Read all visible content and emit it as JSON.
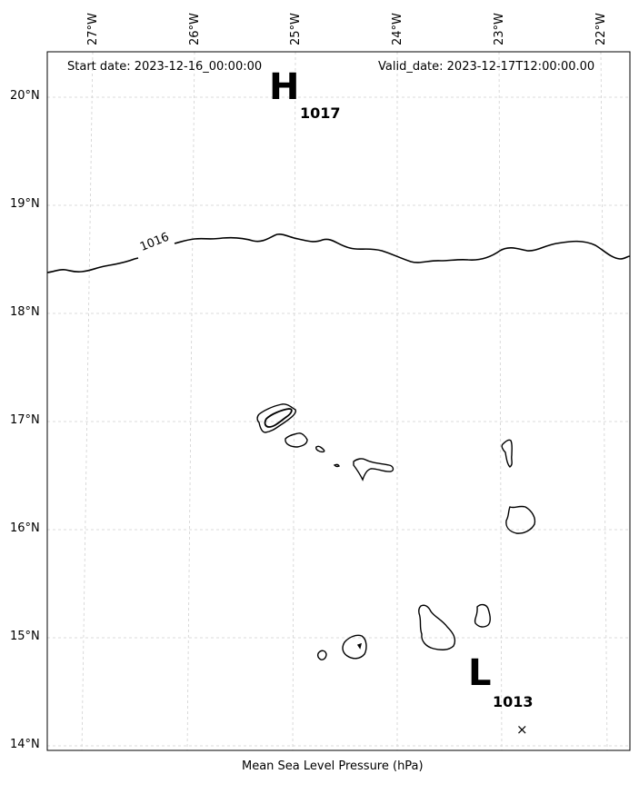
{
  "header": {
    "start_date": "Start date: 2023-12-16_00:00:00",
    "valid_date": "Valid_date: 2023-12-17T12:00:00.00"
  },
  "axes": {
    "lon_labels": [
      "27°W",
      "26°W",
      "25°W",
      "24°W",
      "23°W",
      "22°W"
    ],
    "lat_labels": [
      "20°N",
      "19°N",
      "18°N",
      "17°N",
      "16°N",
      "15°N",
      "14°N"
    ]
  },
  "pressure": {
    "high_symbol": "H",
    "high_value": "1017",
    "low_symbol": "L",
    "low_value": "1013",
    "isobar_label": "1016",
    "low_marker": "×"
  },
  "footer": {
    "xlabel": "Mean Sea Level Pressure (hPa)"
  },
  "colors": {
    "grid": "#cccccc",
    "line": "#000000",
    "frame": "#000000"
  }
}
